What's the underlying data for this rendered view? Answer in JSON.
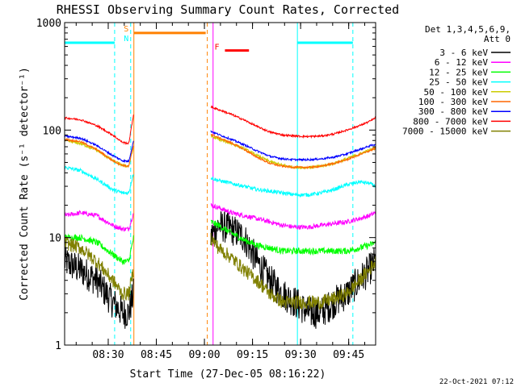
{
  "chart_data": {
    "type": "line",
    "title": "RHESSI Observing Summary Count Rates, Corrected",
    "xlabel": "Start Time (27-Dec-05 08:16:22)",
    "ylabel": "Corrected Count Rate (s⁻¹ detector⁻¹)",
    "yscale": "log",
    "ylim": [
      1,
      1000
    ],
    "xlim_minutes": [
      0,
      97
    ],
    "y_ticks": [
      {
        "value": 1,
        "label": "1"
      },
      {
        "value": 10,
        "label": "10"
      },
      {
        "value": 100,
        "label": "100"
      },
      {
        "value": 1000,
        "label": "1000"
      }
    ],
    "x_ticks": [
      {
        "minute": 13.6,
        "label": "08:30"
      },
      {
        "minute": 28.6,
        "label": "08:45"
      },
      {
        "minute": 43.6,
        "label": "09:00"
      },
      {
        "minute": 58.6,
        "label": "09:15"
      },
      {
        "minute": 73.6,
        "label": "09:30"
      },
      {
        "minute": 88.6,
        "label": "09:45"
      }
    ],
    "legend_header": [
      "Det 1,3,4,5,6,9,",
      "Att 0"
    ],
    "gaps": [
      [
        21.5,
        45.5
      ]
    ],
    "series": [
      {
        "name": "3 - 6 keV",
        "color": "#000000",
        "noise": 0.35,
        "x": [
          0,
          5,
          10,
          15,
          18,
          20,
          21.5,
          45.5,
          48,
          52,
          56,
          60,
          64,
          68,
          72,
          76,
          80,
          84,
          88,
          92,
          95,
          97
        ],
        "y": [
          6,
          5,
          4,
          2.5,
          2,
          2,
          3,
          10,
          13,
          12,
          10,
          6,
          4,
          3,
          2.5,
          2,
          2,
          2.5,
          3,
          4,
          5,
          6
        ]
      },
      {
        "name": "6 - 12 keV",
        "color": "#ff00ff",
        "noise": 0.05,
        "x": [
          0,
          5,
          10,
          15,
          18,
          20,
          21.5,
          45.5,
          48,
          52,
          56,
          60,
          64,
          68,
          72,
          76,
          80,
          84,
          88,
          92,
          95,
          97
        ],
        "y": [
          16,
          17,
          16,
          13,
          12,
          12,
          17,
          20,
          19,
          17,
          16,
          15,
          14,
          13,
          12.5,
          12.5,
          13,
          13.5,
          14,
          15,
          16,
          17
        ]
      },
      {
        "name": "12 - 25 keV",
        "color": "#00ff00",
        "noise": 0.07,
        "x": [
          0,
          5,
          10,
          15,
          18,
          20,
          21.5,
          45.5,
          48,
          52,
          56,
          60,
          64,
          68,
          72,
          76,
          80,
          84,
          88,
          92,
          95,
          97
        ],
        "y": [
          10,
          10,
          9,
          7,
          6,
          6,
          10,
          14,
          13,
          11,
          9.5,
          8.5,
          8,
          7.5,
          7.5,
          7.5,
          7.5,
          7.5,
          7.5,
          8,
          8.5,
          9
        ]
      },
      {
        "name": "25 - 50 keV",
        "color": "#00ffff",
        "noise": 0.04,
        "x": [
          0,
          5,
          10,
          15,
          18,
          20,
          21.5,
          45.5,
          48,
          52,
          56,
          60,
          64,
          68,
          72,
          76,
          80,
          84,
          88,
          92,
          95,
          97
        ],
        "y": [
          45,
          42,
          35,
          28,
          26,
          26,
          40,
          36,
          34,
          32,
          30,
          28,
          27,
          26,
          25,
          25,
          26,
          28,
          31,
          33,
          32,
          30
        ]
      },
      {
        "name": "50 - 100 keV",
        "color": "#cccc00",
        "noise": 0.03,
        "x": [
          0,
          5,
          10,
          15,
          18,
          20,
          21.5,
          45.5,
          48,
          52,
          56,
          60,
          64,
          68,
          72,
          76,
          80,
          84,
          88,
          92,
          95,
          97
        ],
        "y": [
          80,
          75,
          65,
          52,
          47,
          46,
          70,
          88,
          82,
          75,
          67,
          58,
          51,
          47,
          45,
          45,
          46,
          49,
          54,
          60,
          65,
          68
        ]
      },
      {
        "name": "100 - 300 keV",
        "color": "#ff6600",
        "noise": 0.02,
        "x": [
          0,
          5,
          10,
          15,
          18,
          20,
          21.5,
          45.5,
          48,
          52,
          56,
          60,
          64,
          68,
          72,
          76,
          80,
          84,
          88,
          92,
          95,
          97
        ],
        "y": [
          82,
          78,
          66,
          52,
          47,
          46,
          72,
          92,
          85,
          76,
          66,
          56,
          49,
          46,
          45,
          45,
          46,
          49,
          53,
          59,
          64,
          68
        ]
      },
      {
        "name": "300 - 800 keV",
        "color": "#0000ff",
        "noise": 0.02,
        "x": [
          0,
          5,
          10,
          15,
          18,
          20,
          21.5,
          45.5,
          48,
          52,
          56,
          60,
          64,
          68,
          72,
          76,
          80,
          84,
          88,
          92,
          95,
          97
        ],
        "y": [
          88,
          84,
          72,
          58,
          52,
          51,
          80,
          98,
          91,
          82,
          73,
          64,
          57,
          54,
          53,
          53,
          54,
          56,
          60,
          66,
          71,
          74
        ]
      },
      {
        "name": "800 - 7000 keV",
        "color": "#ff0000",
        "noise": 0.02,
        "x": [
          0,
          5,
          10,
          15,
          18,
          20,
          21.5,
          45.5,
          48,
          52,
          56,
          60,
          64,
          68,
          72,
          76,
          80,
          84,
          88,
          92,
          95,
          97
        ],
        "y": [
          130,
          125,
          110,
          90,
          77,
          75,
          140,
          165,
          155,
          140,
          124,
          108,
          96,
          90,
          88,
          87,
          88,
          92,
          100,
          110,
          120,
          130
        ]
      },
      {
        "name": "7000 - 15000 keV",
        "color": "#808000",
        "noise": 0.15,
        "x": [
          0,
          5,
          10,
          15,
          18,
          20,
          21.5,
          45.5,
          48,
          52,
          56,
          60,
          64,
          68,
          72,
          76,
          80,
          84,
          88,
          92,
          95,
          97
        ],
        "y": [
          9,
          8,
          6,
          4,
          3,
          3,
          5,
          10,
          8,
          6.5,
          5,
          4,
          3,
          2.5,
          2.5,
          2.5,
          2.5,
          2.7,
          3,
          4,
          5,
          6
        ]
      }
    ],
    "vertical_markers": [
      {
        "minute": 15.6,
        "color": "#00ffff",
        "style": "dashed"
      },
      {
        "minute": 20.6,
        "color": "#00ffff",
        "style": "dashed"
      },
      {
        "minute": 21.6,
        "color": "#ff8000",
        "style": "solid"
      },
      {
        "minute": 44.5,
        "color": "#ff8000",
        "style": "dashed"
      },
      {
        "minute": 46.3,
        "color": "#ff00ff",
        "style": "solid"
      },
      {
        "minute": 72.6,
        "color": "#00ffff",
        "style": "solid"
      },
      {
        "minute": 89.9,
        "color": "#00ffff",
        "style": "dashed"
      }
    ],
    "flag_bars": [
      {
        "from": 0,
        "to": 15.6,
        "y": 650,
        "color": "#00ffff"
      },
      {
        "from": 21.6,
        "to": 44.0,
        "y": 800,
        "color": "#ff8000"
      },
      {
        "from": 50.0,
        "to": 57.5,
        "y": 550,
        "color": "#ff0000"
      },
      {
        "from": 72.6,
        "to": 89.9,
        "y": 650,
        "color": "#00ffff"
      }
    ],
    "flag_labels": [
      {
        "text": "S",
        "minute": 19.2,
        "y": 830,
        "color": "#ff8000"
      },
      {
        "text": "N",
        "minute": 19.2,
        "y": 670,
        "color": "#00ffff"
      },
      {
        "text": "F",
        "minute": 47.5,
        "y": 560,
        "color": "#ff0000"
      }
    ]
  },
  "footer": {
    "date_stamp": "22-Oct-2021 07:12"
  }
}
